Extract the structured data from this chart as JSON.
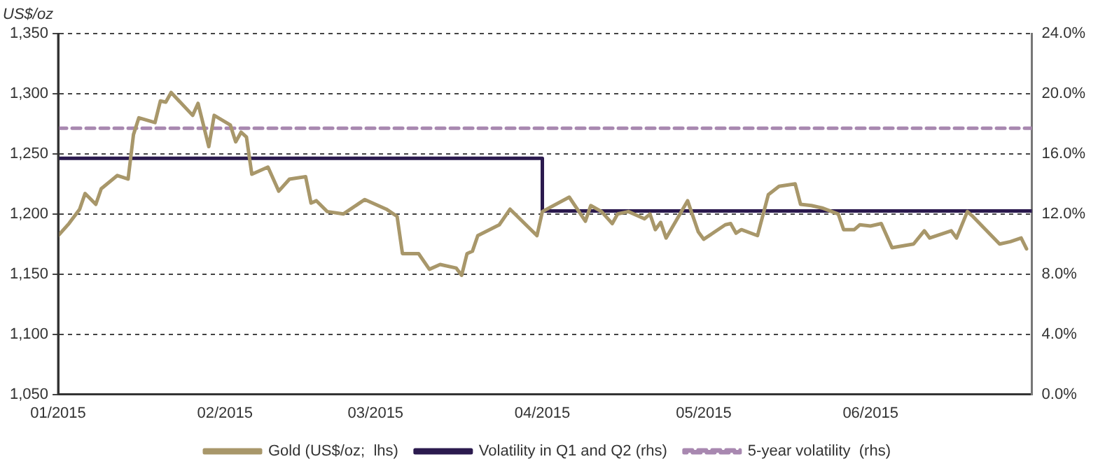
{
  "chart_data": {
    "type": "line",
    "ylabel": "US$/oz",
    "xlim": [
      "2015-01-01",
      "2015-07-01"
    ],
    "xticks": [
      {
        "value": "2015-01-01",
        "label": "01/2015"
      },
      {
        "value": "2015-02-01",
        "label": "02/2015"
      },
      {
        "value": "2015-03-01",
        "label": "03/2015"
      },
      {
        "value": "2015-04-01",
        "label": "04/2015"
      },
      {
        "value": "2015-05-01",
        "label": "05/2015"
      },
      {
        "value": "2015-06-01",
        "label": "06/2015"
      }
    ],
    "ylim": [
      1050,
      1350
    ],
    "yticks": [
      {
        "value": 1050,
        "label": "1,050"
      },
      {
        "value": 1100,
        "label": "1,100"
      },
      {
        "value": 1150,
        "label": "1,150"
      },
      {
        "value": 1200,
        "label": "1,200"
      },
      {
        "value": 1250,
        "label": "1,250"
      },
      {
        "value": 1300,
        "label": "1,300"
      },
      {
        "value": 1350,
        "label": "1,350"
      }
    ],
    "y2lim": [
      0,
      24
    ],
    "y2ticks": [
      {
        "value": 0,
        "label": "0.0%"
      },
      {
        "value": 4,
        "label": "4.0%"
      },
      {
        "value": 8,
        "label": "8.0%"
      },
      {
        "value": 12,
        "label": "12.0%"
      },
      {
        "value": 16,
        "label": "16.0%"
      },
      {
        "value": 20,
        "label": "20.0%"
      },
      {
        "value": 24,
        "label": "24.0%"
      }
    ],
    "grid": "y",
    "legend": "bottom",
    "marker": "none",
    "series": [
      {
        "name": "Gold (US$/oz;  lhs)",
        "color": "#a8976a",
        "type": "line",
        "x": [
          "2015-01-01",
          "2015-01-03",
          "2015-01-05",
          "2015-01-06",
          "2015-01-08",
          "2015-01-09",
          "2015-01-12",
          "2015-01-14",
          "2015-01-15",
          "2015-01-16",
          "2015-01-19",
          "2015-01-20",
          "2015-01-21",
          "2015-01-22",
          "2015-01-26",
          "2015-01-27",
          "2015-01-29",
          "2015-01-30",
          "2015-02-02",
          "2015-02-03",
          "2015-02-04",
          "2015-02-05",
          "2015-02-06",
          "2015-02-09",
          "2015-02-11",
          "2015-02-13",
          "2015-02-16",
          "2015-02-17",
          "2015-02-18",
          "2015-02-20",
          "2015-02-23",
          "2015-02-27",
          "2015-03-03",
          "2015-03-05",
          "2015-03-06",
          "2015-03-09",
          "2015-03-11",
          "2015-03-13",
          "2015-03-16",
          "2015-03-17",
          "2015-03-18",
          "2015-03-19",
          "2015-03-20",
          "2015-03-24",
          "2015-03-26",
          "2015-03-31",
          "2015-04-01",
          "2015-04-06",
          "2015-04-09",
          "2015-04-10",
          "2015-04-12",
          "2015-04-14",
          "2015-04-15",
          "2015-04-17",
          "2015-04-20",
          "2015-04-21",
          "2015-04-22",
          "2015-04-23",
          "2015-04-24",
          "2015-04-28",
          "2015-04-30",
          "2015-05-01",
          "2015-05-05",
          "2015-05-06",
          "2015-05-07",
          "2015-05-08",
          "2015-05-11",
          "2015-05-13",
          "2015-05-15",
          "2015-05-18",
          "2015-05-19",
          "2015-05-21",
          "2015-05-23",
          "2015-05-26",
          "2015-05-27",
          "2015-05-29",
          "2015-05-30",
          "2015-06-01",
          "2015-06-03",
          "2015-06-05",
          "2015-06-09",
          "2015-06-11",
          "2015-06-12",
          "2015-06-16",
          "2015-06-17",
          "2015-06-19",
          "2015-06-20",
          "2015-06-25",
          "2015-06-27",
          "2015-06-29",
          "2015-06-30"
        ],
        "values": [
          1182,
          1192,
          1204,
          1217,
          1208,
          1221,
          1232,
          1229,
          1266,
          1280,
          1276,
          1294,
          1293,
          1301,
          1282,
          1292,
          1256,
          1282,
          1274,
          1260,
          1268,
          1264,
          1233,
          1239,
          1219,
          1229,
          1231,
          1209,
          1211,
          1202,
          1200,
          1212,
          1204,
          1198,
          1167,
          1167,
          1154,
          1158,
          1155,
          1149,
          1167,
          1169,
          1182,
          1191,
          1204,
          1182,
          1202,
          1214,
          1194,
          1207,
          1202,
          1192,
          1200,
          1202,
          1196,
          1200,
          1187,
          1193,
          1180,
          1211,
          1185,
          1179,
          1191,
          1192,
          1184,
          1187,
          1182,
          1216,
          1223,
          1225,
          1208,
          1207,
          1205,
          1200,
          1187,
          1187,
          1191,
          1190,
          1192,
          1172,
          1175,
          1186,
          1180,
          1186,
          1180,
          1202,
          1198,
          1175,
          1177,
          1180,
          1171
        ]
      },
      {
        "name": "Volatility in Q1 and Q2 (rhs)",
        "color": "#2b1a4e",
        "type": "step",
        "axis": "y2",
        "x": [
          "2015-01-01",
          "2015-04-01",
          "2015-07-01"
        ],
        "values": [
          15.7,
          12.2,
          12.2
        ]
      },
      {
        "name": "5-year volatility  (rhs)",
        "color": "#a888b0",
        "type": "line",
        "axis": "y2",
        "line_style": "dashed",
        "x": [
          "2015-01-01",
          "2015-07-01"
        ],
        "values": [
          17.7,
          17.7
        ]
      }
    ]
  }
}
